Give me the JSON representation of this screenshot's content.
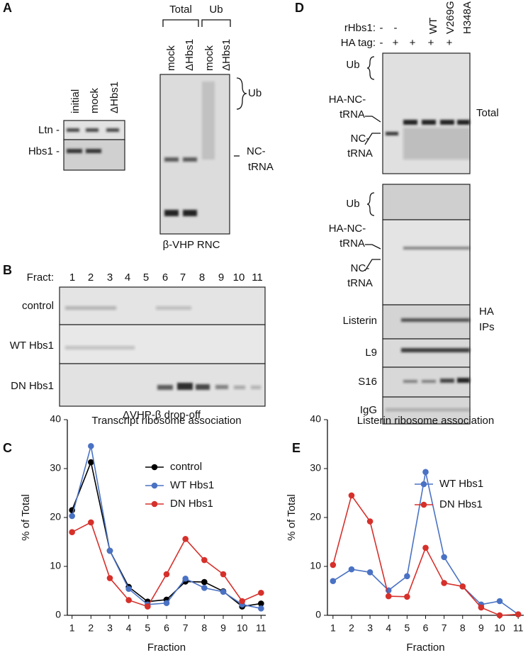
{
  "A": {
    "letter": "A",
    "blot_lanes": [
      "initial",
      "mock",
      "ΔHbs1"
    ],
    "blot_rows": [
      "Ltn -",
      "Hbs1 -"
    ],
    "gel_groups": [
      "Total",
      "Ub"
    ],
    "gel_lanes": [
      "mock",
      "ΔHbs1",
      "mock",
      "ΔHbs1"
    ],
    "ub_label": "Ub",
    "nc_label": [
      "NC-",
      "tRNA"
    ],
    "caption": "β-VHP RNC"
  },
  "B": {
    "letter": "B",
    "fract_label": "Fract:",
    "fractions": [
      "1",
      "2",
      "3",
      "4",
      "5",
      "6",
      "7",
      "8",
      "9",
      "10",
      "11"
    ],
    "rows": [
      "control",
      "WT Hbs1",
      "DN Hbs1"
    ],
    "caption": "ΔVHP-β drop-off"
  },
  "D": {
    "letter": "D",
    "rhbs1_label": "rHbs1:",
    "ha_label": "HA tag:",
    "rhbs1": [
      "-",
      "-",
      "WT",
      "V269G",
      "H348A"
    ],
    "ha": [
      "-",
      "+",
      "+",
      "+",
      "+"
    ],
    "total": {
      "ub": "Ub",
      "ha_nc": [
        "HA-NC-",
        "tRNA"
      ],
      "nc": [
        "NC-",
        "tRNA"
      ],
      "label": "Total"
    },
    "ips": {
      "ub": "Ub",
      "ha_nc": [
        "HA-NC-",
        "tRNA"
      ],
      "nc": [
        "NC-",
        "tRNA"
      ],
      "label": [
        "HA",
        "IPs"
      ],
      "blots": [
        "Listerin",
        "L9",
        "S16",
        "IgG"
      ]
    }
  },
  "chart_data": [
    {
      "type": "line",
      "panel": "C",
      "title": "Transcript ribosome association",
      "x_label": "Fraction",
      "y_label": "% of Total",
      "x": [
        1,
        2,
        3,
        4,
        5,
        6,
        7,
        8,
        9,
        10,
        11
      ],
      "xlim": [
        0.75,
        11.25
      ],
      "xticks": [
        1,
        2,
        3,
        4,
        5,
        6,
        7,
        8,
        9,
        10,
        11
      ],
      "ylim": [
        0,
        40
      ],
      "yticks": [
        0,
        10,
        20,
        30,
        40
      ],
      "legend": "upper right",
      "series": [
        {
          "name": "control",
          "color": "#000000",
          "values": [
            21.5,
            31.3,
            13.2,
            5.8,
            2.8,
            3.2,
            6.9,
            6.8,
            4.9,
            1.8,
            2.4
          ]
        },
        {
          "name": "WT Hbs1",
          "color": "#4a72c4",
          "values": [
            20.3,
            34.6,
            13.2,
            5.4,
            2.2,
            2.5,
            7.5,
            5.6,
            4.8,
            2.2,
            1.4
          ]
        },
        {
          "name": "DN Hbs1",
          "color": "#d6302b",
          "values": [
            17,
            19,
            7.6,
            3.1,
            1.8,
            8.4,
            15.6,
            11.3,
            8.4,
            2.9,
            4.6
          ]
        }
      ]
    },
    {
      "type": "line",
      "panel": "E",
      "title": "Listerin ribosome association",
      "x_label": "Fraction",
      "y_label": "% of Total",
      "x": [
        1,
        2,
        3,
        4,
        5,
        6,
        7,
        8,
        9,
        10,
        11
      ],
      "xlim": [
        0.7,
        11.3
      ],
      "xticks": [
        1,
        2,
        3,
        4,
        5,
        6,
        7,
        8,
        9,
        10,
        11
      ],
      "ylim": [
        0,
        40
      ],
      "yticks": [
        0,
        10,
        20,
        30,
        40
      ],
      "legend": "center right",
      "series": [
        {
          "name": "WT Hbs1",
          "color": "#4a72c4",
          "values": [
            7,
            9.4,
            8.8,
            5.1,
            8,
            29.3,
            11.9,
            5.9,
            2.2,
            2.9,
            0.2
          ]
        },
        {
          "name": "DN Hbs1",
          "color": "#d6302b",
          "values": [
            10.3,
            24.5,
            19.2,
            3.9,
            3.8,
            13.8,
            6.6,
            5.9,
            1.6,
            0,
            0.2
          ]
        }
      ]
    }
  ]
}
